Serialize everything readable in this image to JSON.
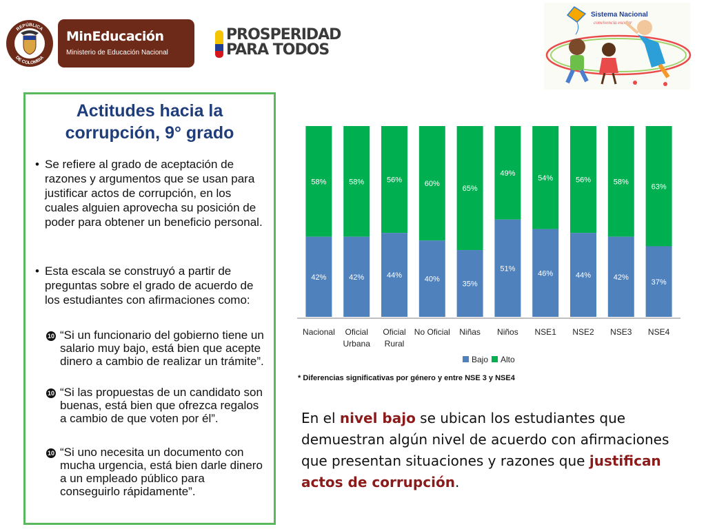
{
  "header": {
    "escudo_text_top": "REPÚBLICA",
    "escudo_text_bottom": "DE COLOMBIA",
    "mineducacion_title": "MinEducación",
    "mineducacion_subtitle": "Ministerio de Educación Nacional",
    "prosperidad_line1": "PROSPERIDAD",
    "prosperidad_line2": "PARA TODOS",
    "sistema_nacional_line1": "Sistema Nacional",
    "sistema_nacional_line2": "convivencia escolar",
    "colors": {
      "mineducacion_bg": "#6d2a19",
      "flag_yellow": "#f5c400",
      "flag_blue": "#1f3f95",
      "flag_red": "#d4161a"
    }
  },
  "panel": {
    "title_line1": "Actitudes hacia la",
    "title_line2": "corrupción, 9° grado",
    "bullets": [
      "Se refiere al grado de aceptación de razones y argumentos que se usan para justificar actos de corrupción, en los cuales alguien aprovecha su posición de poder para obtener un beneficio personal.",
      "Esta escala se construyó a partir de preguntas sobre el grado de acuerdo de los estudiantes con afirmaciones como:"
    ],
    "bullet_glyph": "•",
    "quote_glyph": "10",
    "quotes": [
      "“Si un funcionario del gobierno tiene un salario muy bajo, está bien que acepte dinero a cambio de realizar un trámite”.",
      "“Si las propuestas de un candidato son buenas, está bien que ofrezca regalos a cambio de que voten por él”.",
      "“Si uno necesita un documento con mucha urgencia, está bien darle dinero a un empleado público para conseguirlo rápidamente”."
    ],
    "border_color": "#5cb85c",
    "title_color": "#1f3d7a"
  },
  "chart_data": {
    "type": "bar",
    "stacked": true,
    "categories": [
      "Nacional",
      "Oficial Urbana",
      "Oficial Rural",
      "No Oficial",
      "Niñas",
      "Niños",
      "NSE1",
      "NSE2",
      "NSE3",
      "NSE4"
    ],
    "series": [
      {
        "name": "Bajo",
        "values": [
          42,
          42,
          44,
          40,
          35,
          51,
          46,
          44,
          42,
          37
        ],
        "color": "#4f81bd"
      },
      {
        "name": "Alto",
        "values": [
          58,
          58,
          56,
          60,
          65,
          49,
          54,
          56,
          58,
          63
        ],
        "color": "#00b050"
      }
    ],
    "value_labels_bajo": [
      "42%",
      "42%",
      "44%",
      "40%",
      "35%",
      "51%",
      "46%",
      "44%",
      "42%",
      "37%"
    ],
    "value_labels_alto": [
      "58%",
      "58%",
      "56%",
      "60%",
      "65%",
      "49%",
      "54%",
      "56%",
      "58%",
      "63%"
    ],
    "ylim": [
      0,
      100
    ],
    "legend_position": "bottom",
    "grid": false
  },
  "note": "* Diferencias significativas por género y entre NSE 3  y NSE4",
  "bottom_text": {
    "part1": "En el ",
    "highlight1": "nivel bajo",
    "part2": " se ubican los estudiantes que demuestran algún nivel de acuerdo con afirmaciones que presentan situaciones y razones que ",
    "highlight2": "justifican actos de corrupción",
    "part3": "."
  }
}
